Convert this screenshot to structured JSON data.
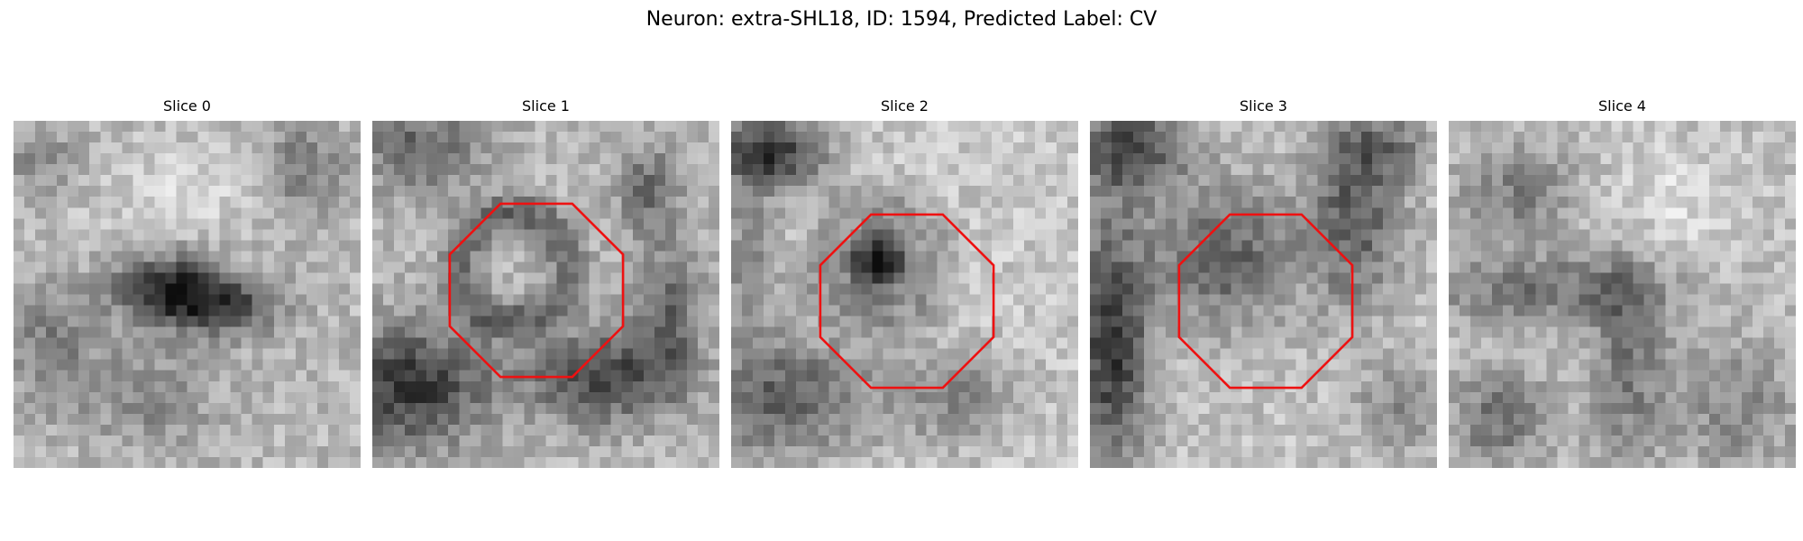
{
  "figure": {
    "title": "Neuron: extra-SHL18, ID: 1594, Predicted Label: CV"
  },
  "panels": [
    {
      "title": "Slice 0",
      "pattern": "band",
      "roi": false
    },
    {
      "title": "Slice 1",
      "pattern": "ring",
      "roi": true
    },
    {
      "title": "Slice 2",
      "pattern": "dark-core",
      "roi": true
    },
    {
      "title": "Slice 3",
      "pattern": "diffuse",
      "roi": true
    },
    {
      "title": "Slice 4",
      "pattern": "cross",
      "roi": false
    }
  ],
  "colors": {
    "roi_outline": "#ee1111",
    "background": "#ffffff",
    "colormap": "grayscale"
  }
}
